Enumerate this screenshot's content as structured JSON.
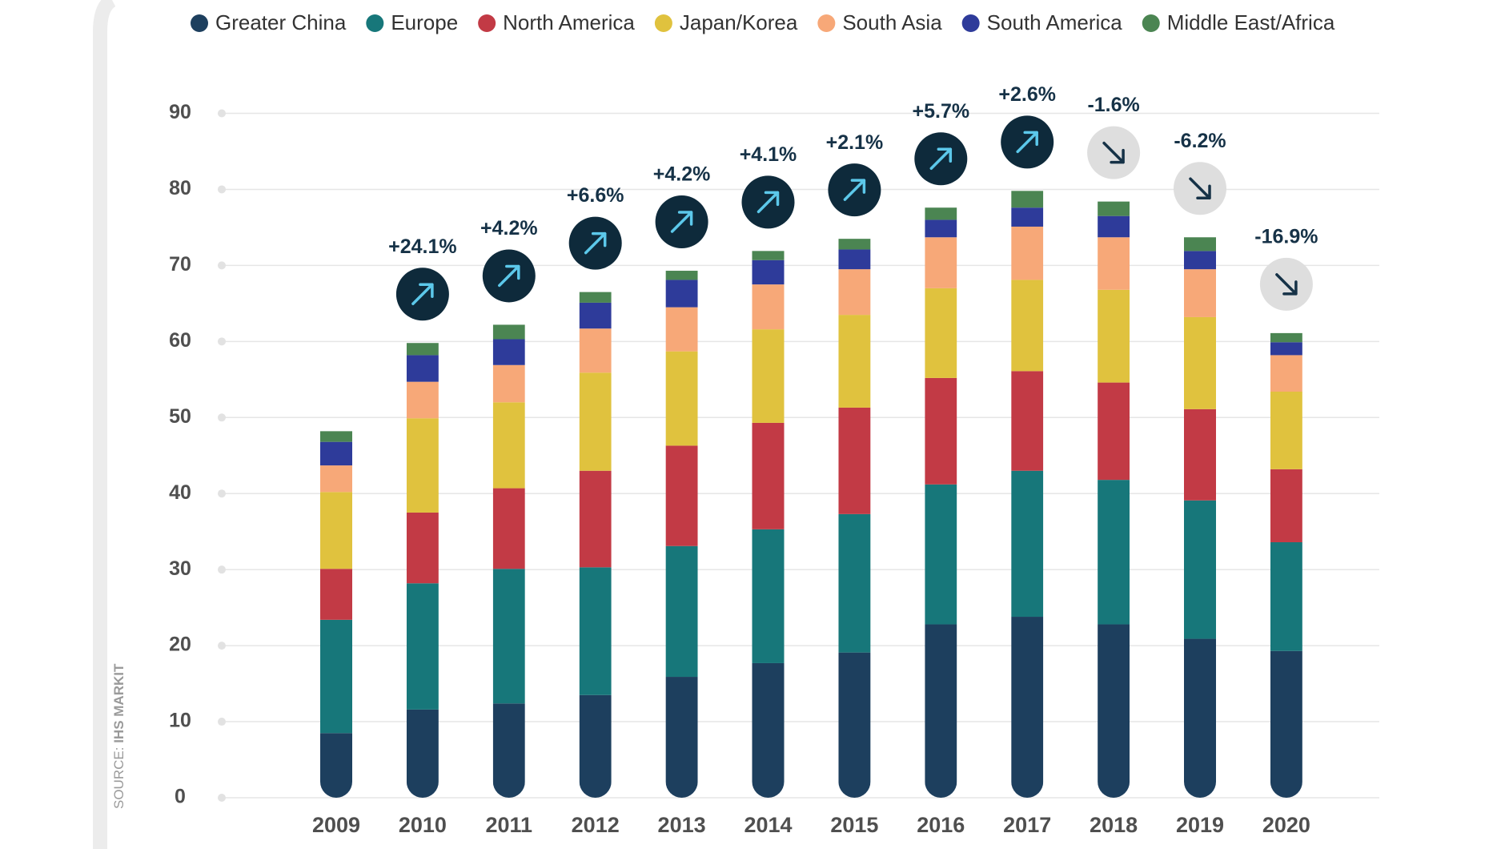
{
  "chart_data": {
    "type": "stacked-bar",
    "categories": [
      "2009",
      "2010",
      "2011",
      "2012",
      "2013",
      "2014",
      "2015",
      "2016",
      "2017",
      "2018",
      "2019",
      "2020"
    ],
    "series": [
      {
        "name": "Greater China",
        "color": "#1d3f5e",
        "values": [
          8.5,
          11.6,
          12.4,
          13.5,
          15.9,
          17.7,
          19.1,
          22.8,
          23.8,
          22.8,
          20.9,
          19.3
        ]
      },
      {
        "name": "Europe",
        "color": "#17777a",
        "values": [
          14.9,
          16.6,
          17.7,
          16.8,
          17.2,
          17.6,
          18.2,
          18.4,
          19.2,
          19.0,
          18.2,
          14.3
        ]
      },
      {
        "name": "North America",
        "color": "#c23a45",
        "values": [
          6.7,
          9.3,
          10.6,
          12.7,
          13.2,
          14.0,
          14.0,
          14.0,
          13.1,
          12.8,
          12.0,
          9.6
        ]
      },
      {
        "name": "Japan/Korea",
        "color": "#e0c23e",
        "values": [
          10.1,
          12.4,
          11.3,
          12.9,
          12.4,
          12.3,
          12.2,
          11.8,
          12.0,
          12.2,
          12.1,
          10.2
        ]
      },
      {
        "name": "South Asia",
        "color": "#f7a878",
        "values": [
          3.5,
          4.8,
          4.9,
          5.8,
          5.8,
          5.9,
          6.0,
          6.7,
          7.0,
          6.9,
          6.3,
          4.8
        ]
      },
      {
        "name": "South America",
        "color": "#2e3b9a",
        "values": [
          3.1,
          3.5,
          3.4,
          3.4,
          3.6,
          3.2,
          2.6,
          2.3,
          2.5,
          2.8,
          2.4,
          1.7
        ]
      },
      {
        "name": "Middle East/Africa",
        "color": "#4b8552",
        "values": [
          1.4,
          1.6,
          1.9,
          1.4,
          1.2,
          1.2,
          1.4,
          1.6,
          2.2,
          1.9,
          1.8,
          1.2
        ]
      }
    ],
    "change_labels": [
      null,
      "+24.1%",
      "+4.2%",
      "+6.6%",
      "+4.2%",
      "+4.1%",
      "+2.1%",
      "+5.7%",
      "+2.6%",
      "-1.6%",
      "-6.2%",
      "-16.9%"
    ],
    "ylim": [
      0,
      90
    ],
    "yticks": [
      0,
      10,
      20,
      30,
      40,
      50,
      60,
      70,
      80,
      90
    ],
    "grid": true,
    "legend": "top",
    "source_label": "SOURCE:",
    "source_name": "IHS MARKIT"
  }
}
